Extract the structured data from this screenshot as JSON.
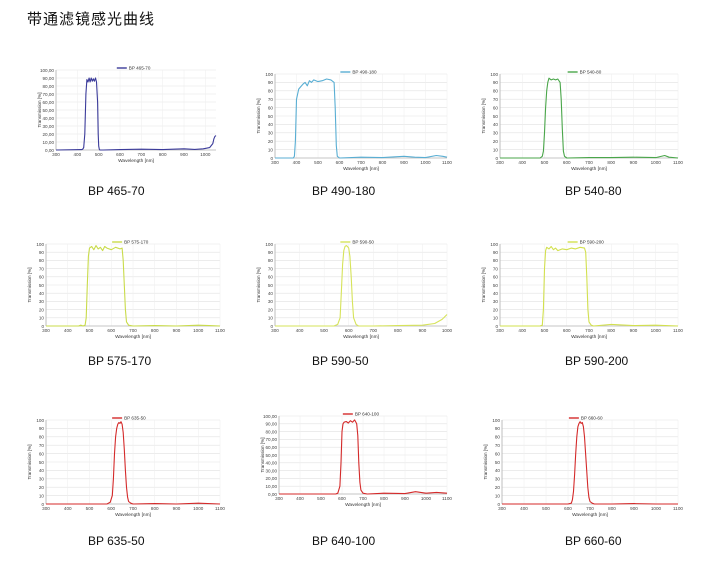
{
  "title": "带通滤镜感光曲线",
  "chart_data": [
    {
      "type": "line",
      "name": "BP 465-70",
      "legend": "BP 465-70",
      "color": "#3b3b9a",
      "ylabel": "Transmission [%]",
      "xlabel": "Wavelength [nm]",
      "xlim": [
        300,
        1050
      ],
      "ylim": [
        0,
        100
      ],
      "yticks": [
        "100,00",
        "90,00",
        "80,00",
        "70,00",
        "60,00",
        "50,00",
        "40,00",
        "30,00",
        "20,00",
        "10,00",
        "0,00"
      ],
      "xticks": [
        "300",
        "400",
        "500",
        "600",
        "700",
        "800",
        "900",
        "1000"
      ],
      "x": [
        300,
        420,
        425,
        430,
        435,
        440,
        445,
        450,
        455,
        460,
        465,
        470,
        475,
        480,
        485,
        490,
        495,
        498,
        500,
        503,
        506,
        510,
        520,
        600,
        700,
        800,
        850,
        900,
        950,
        990,
        1000,
        1020,
        1035,
        1040,
        1045,
        1050
      ],
      "y": [
        0,
        0.5,
        1,
        3,
        20,
        70,
        88,
        85,
        90,
        85,
        90,
        86,
        89,
        86,
        90,
        85,
        60,
        20,
        5,
        1,
        0,
        0,
        0,
        0.5,
        1,
        0.5,
        1,
        1.5,
        0.8,
        1.5,
        2,
        3,
        8,
        14,
        17,
        18
      ]
    },
    {
      "type": "line",
      "name": "BP 490-180",
      "legend": "BP 490-180",
      "color": "#59aed3",
      "ylabel": "Transmission [%]",
      "xlabel": "Wavelength [nm]",
      "xlim": [
        300,
        1100
      ],
      "ylim": [
        0,
        100
      ],
      "yticks": [
        "100",
        "90",
        "80",
        "70",
        "60",
        "50",
        "40",
        "30",
        "20",
        "10",
        "0"
      ],
      "xticks": [
        "300",
        "400",
        "500",
        "600",
        "700",
        "800",
        "900",
        "1000",
        "1100"
      ],
      "x": [
        300,
        385,
        390,
        395,
        400,
        410,
        420,
        430,
        440,
        450,
        460,
        470,
        480,
        500,
        520,
        540,
        560,
        575,
        580,
        585,
        590,
        600,
        700,
        800,
        900,
        950,
        1000,
        1050,
        1080,
        1100
      ],
      "y": [
        0,
        0,
        2,
        20,
        70,
        82,
        85,
        88,
        90,
        86,
        92,
        90,
        93,
        91,
        92,
        94,
        93,
        90,
        60,
        15,
        2,
        0,
        1,
        0.5,
        2,
        1,
        0.5,
        3,
        2,
        1
      ]
    },
    {
      "type": "line",
      "name": "BP 540-80",
      "legend": "BP 540-80",
      "color": "#4aa64a",
      "ylabel": "Transmission [%]",
      "xlabel": "Wavelength [nm]",
      "xlim": [
        300,
        1100
      ],
      "ylim": [
        0,
        100
      ],
      "yticks": [
        "100",
        "90",
        "80",
        "70",
        "60",
        "50",
        "40",
        "30",
        "20",
        "10",
        "0"
      ],
      "xticks": [
        "300",
        "400",
        "500",
        "600",
        "700",
        "800",
        "900",
        "1000",
        "1100"
      ],
      "x": [
        300,
        480,
        490,
        495,
        500,
        505,
        510,
        515,
        520,
        530,
        540,
        550,
        560,
        570,
        575,
        580,
        585,
        590,
        600,
        700,
        800,
        900,
        1000,
        1040,
        1060,
        1100
      ],
      "y": [
        0,
        0,
        2,
        8,
        30,
        60,
        80,
        90,
        95,
        93,
        94,
        93,
        94,
        90,
        70,
        35,
        8,
        2,
        0,
        0.5,
        0.5,
        1,
        0.5,
        3,
        1,
        0
      ]
    },
    {
      "type": "line",
      "name": "BP 575-170",
      "legend": "BP 575-170",
      "color": "#c9db4a",
      "ylabel": "Transmission [%]",
      "xlabel": "Wavelength [nm]",
      "xlim": [
        300,
        1100
      ],
      "ylim": [
        0,
        100
      ],
      "yticks": [
        "100",
        "90",
        "80",
        "70",
        "60",
        "50",
        "40",
        "30",
        "20",
        "10",
        "0"
      ],
      "xticks": [
        "300",
        "400",
        "500",
        "600",
        "700",
        "800",
        "900",
        "1000",
        "1100"
      ],
      "x": [
        300,
        450,
        460,
        470,
        480,
        485,
        490,
        495,
        500,
        510,
        520,
        530,
        540,
        550,
        560,
        570,
        580,
        600,
        620,
        640,
        650,
        655,
        660,
        665,
        670,
        680,
        700,
        800,
        900,
        1000,
        1050,
        1100
      ],
      "y": [
        0,
        0,
        1,
        0,
        1,
        10,
        50,
        85,
        95,
        97,
        93,
        98,
        94,
        96,
        92,
        97,
        95,
        93,
        96,
        94,
        95,
        80,
        50,
        20,
        5,
        1,
        0,
        0.5,
        0,
        1,
        0.5,
        0
      ]
    },
    {
      "type": "line",
      "name": "BP 590-50",
      "legend": "BP 590-50",
      "color": "#d6e35a",
      "ylabel": "Transmission [%]",
      "xlabel": "Wavelength [nm]",
      "xlim": [
        300,
        1000
      ],
      "ylim": [
        0,
        100
      ],
      "yticks": [
        "100",
        "90",
        "80",
        "70",
        "60",
        "50",
        "40",
        "30",
        "20",
        "10",
        "0"
      ],
      "xticks": [
        "300",
        "400",
        "500",
        "600",
        "700",
        "800",
        "900",
        "1000"
      ],
      "x": [
        300,
        540,
        555,
        565,
        570,
        575,
        580,
        585,
        590,
        595,
        600,
        605,
        610,
        615,
        620,
        630,
        640,
        700,
        800,
        900,
        950,
        980,
        1000
      ],
      "y": [
        0,
        0,
        2,
        10,
        40,
        75,
        92,
        97,
        98,
        97,
        95,
        85,
        60,
        30,
        10,
        2,
        0,
        0,
        0.5,
        1,
        3,
        8,
        14
      ]
    },
    {
      "type": "line",
      "name": "BP 590-200",
      "legend": "BP 590-200",
      "color": "#d2e04e",
      "ylabel": "Transmission [%]",
      "xlabel": "Wavelength [nm]",
      "xlim": [
        300,
        1100
      ],
      "ylim": [
        0,
        100
      ],
      "yticks": [
        "100",
        "90",
        "80",
        "70",
        "60",
        "50",
        "40",
        "30",
        "20",
        "10",
        "0"
      ],
      "xticks": [
        "300",
        "400",
        "500",
        "600",
        "700",
        "800",
        "900",
        "1000",
        "1100"
      ],
      "x": [
        300,
        480,
        490,
        495,
        500,
        505,
        510,
        520,
        530,
        540,
        550,
        560,
        580,
        600,
        620,
        640,
        660,
        680,
        685,
        690,
        695,
        700,
        710,
        720,
        800,
        900,
        1000,
        1100
      ],
      "y": [
        0,
        0,
        1,
        20,
        70,
        92,
        96,
        94,
        97,
        93,
        95,
        92,
        94,
        93,
        95,
        94,
        96,
        95,
        90,
        60,
        20,
        5,
        1,
        0,
        2,
        0.5,
        1,
        0
      ]
    },
    {
      "type": "line",
      "name": "BP 635-50",
      "legend": "BP 635-50",
      "color": "#d42a2a",
      "ylabel": "Transmission [%]",
      "xlabel": "Wavelength [nm]",
      "xlim": [
        300,
        1100
      ],
      "ylim": [
        0,
        100
      ],
      "yticks": [
        "100",
        "90",
        "80",
        "70",
        "60",
        "50",
        "40",
        "30",
        "20",
        "10",
        "0"
      ],
      "xticks": [
        "300",
        "400",
        "500",
        "600",
        "700",
        "800",
        "900",
        "1000",
        "1100"
      ],
      "x": [
        300,
        580,
        595,
        605,
        610,
        615,
        620,
        625,
        630,
        635,
        640,
        645,
        650,
        655,
        660,
        665,
        670,
        675,
        680,
        690,
        700,
        800,
        900,
        1000,
        1100
      ],
      "y": [
        0,
        0,
        2,
        10,
        30,
        60,
        80,
        90,
        95,
        97,
        96,
        98,
        95,
        85,
        65,
        40,
        20,
        8,
        3,
        1,
        0,
        0.5,
        0,
        1,
        0
      ]
    },
    {
      "type": "line",
      "name": "BP 640-100",
      "legend": "BP 640-100",
      "color": "#d42a2a",
      "ylabel": "Transmission [%]",
      "xlabel": "Wavelength [nm]",
      "xlim": [
        300,
        1100
      ],
      "ylim": [
        0,
        100
      ],
      "yticks": [
        "100,00",
        "90,00",
        "80,00",
        "70,00",
        "60,00",
        "50,00",
        "40,00",
        "30,00",
        "20,00",
        "10,00",
        "0,00"
      ],
      "xticks": [
        "300",
        "400",
        "500",
        "600",
        "700",
        "800",
        "900",
        "1000",
        "1100"
      ],
      "x": [
        300,
        570,
        580,
        590,
        595,
        600,
        605,
        610,
        620,
        630,
        640,
        650,
        660,
        670,
        675,
        680,
        685,
        690,
        700,
        720,
        800,
        900,
        950,
        1000,
        1050,
        1100
      ],
      "y": [
        0,
        0,
        1,
        10,
        40,
        80,
        90,
        92,
        93,
        91,
        94,
        92,
        95,
        90,
        75,
        40,
        15,
        5,
        1,
        0,
        1,
        0.5,
        3,
        1,
        2,
        1
      ]
    },
    {
      "type": "line",
      "name": "BP 660-60",
      "legend": "BP 660-60",
      "color": "#d42a2a",
      "ylabel": "Transmission [%]",
      "xlabel": "Wavelength [nm]",
      "xlim": [
        300,
        1100
      ],
      "ylim": [
        0,
        100
      ],
      "yticks": [
        "100",
        "90",
        "80",
        "70",
        "60",
        "50",
        "40",
        "30",
        "20",
        "10",
        "0"
      ],
      "xticks": [
        "300",
        "400",
        "500",
        "600",
        "700",
        "800",
        "900",
        "1000",
        "1100"
      ],
      "x": [
        300,
        600,
        615,
        620,
        625,
        630,
        635,
        640,
        645,
        650,
        655,
        660,
        665,
        670,
        675,
        680,
        685,
        690,
        695,
        700,
        710,
        720,
        800,
        900,
        1000,
        1100
      ],
      "y": [
        0,
        0,
        1,
        5,
        15,
        35,
        60,
        80,
        92,
        96,
        98,
        96,
        97,
        92,
        80,
        60,
        40,
        20,
        8,
        3,
        1,
        0,
        0,
        0.5,
        0,
        0
      ]
    }
  ]
}
